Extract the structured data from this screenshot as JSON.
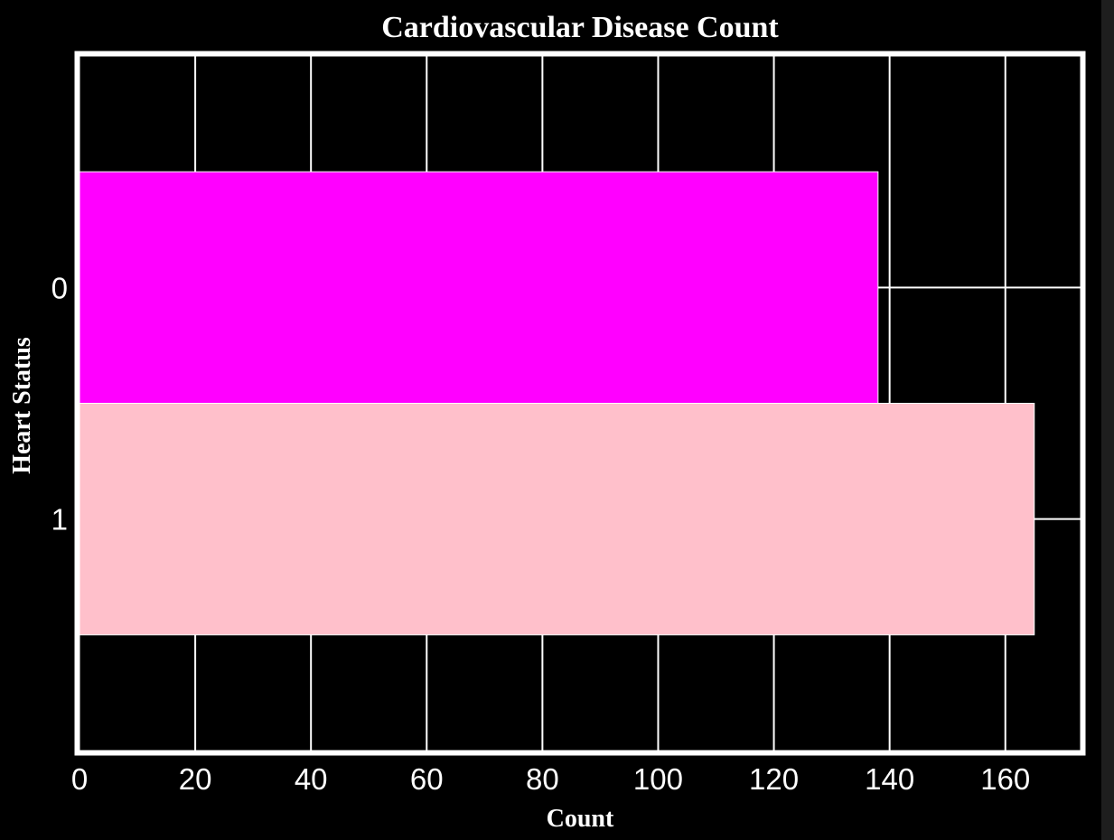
{
  "chart_data": {
    "type": "bar",
    "orientation": "horizontal",
    "title": "Cardiovascular Disease Count",
    "xlabel": "Count",
    "ylabel": "Heart Status",
    "categories": [
      "0",
      "1"
    ],
    "values": [
      138,
      165
    ],
    "bar_colors": [
      "#ff00ff",
      "#ffc0cb"
    ],
    "xlim": [
      0,
      173
    ],
    "xticks": [
      0,
      20,
      40,
      60,
      80,
      100,
      120,
      140,
      160
    ],
    "grid": true,
    "legend": "none"
  },
  "colors": {
    "background": "#000000",
    "grid": "#ffffff",
    "frame": "#ffffff",
    "text": "#ffffff"
  }
}
